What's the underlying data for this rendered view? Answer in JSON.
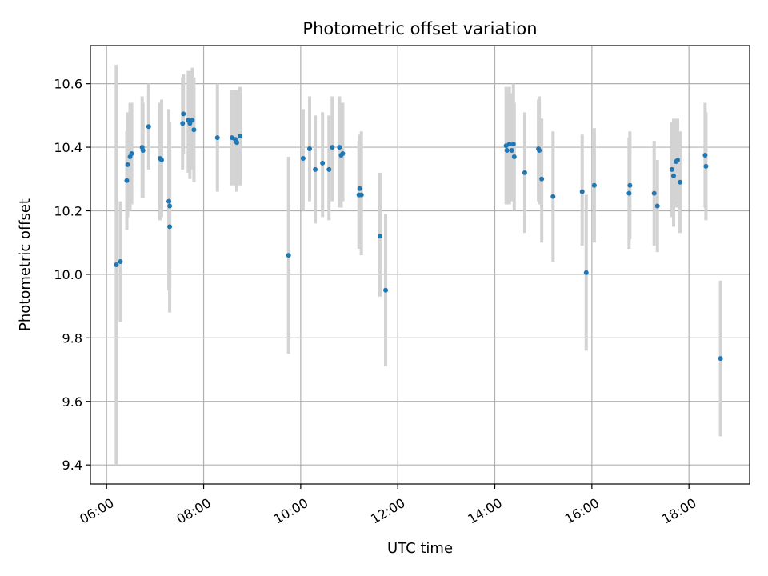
{
  "chart_data": {
    "type": "scatter",
    "title": "Photometric offset variation",
    "xlabel": "UTC time",
    "ylabel": "Photometric offset",
    "xlim": [
      "05:40",
      "19:15"
    ],
    "ylim": [
      9.34,
      10.72
    ],
    "xticks": [
      "06:00",
      "08:00",
      "10:00",
      "12:00",
      "14:00",
      "16:00",
      "18:00"
    ],
    "yticks": [
      "9.4",
      "9.6",
      "9.8",
      "10.0",
      "10.2",
      "10.4",
      "10.6"
    ],
    "grid": true,
    "colors": {
      "points": "#1f77b4",
      "errorbars": "#d3d3d3",
      "grid": "#b0b0b0"
    },
    "points": [
      {
        "x": "06:12",
        "y": 10.03,
        "lo": 9.4,
        "hi": 10.66
      },
      {
        "x": "06:17",
        "y": 10.04,
        "lo": 9.85,
        "hi": 10.23
      },
      {
        "x": "06:25",
        "y": 10.295,
        "lo": 10.14,
        "hi": 10.45
      },
      {
        "x": "06:26",
        "y": 10.345,
        "lo": 10.18,
        "hi": 10.51
      },
      {
        "x": "06:29",
        "y": 10.37,
        "lo": 10.2,
        "hi": 10.54
      },
      {
        "x": "06:31",
        "y": 10.38,
        "lo": 10.22,
        "hi": 10.54
      },
      {
        "x": "06:44",
        "y": 10.4,
        "lo": 10.24,
        "hi": 10.56
      },
      {
        "x": "06:45",
        "y": 10.39,
        "lo": 10.24,
        "hi": 10.54
      },
      {
        "x": "06:52",
        "y": 10.465,
        "lo": 10.33,
        "hi": 10.6
      },
      {
        "x": "07:06",
        "y": 10.365,
        "lo": 10.17,
        "hi": 10.54
      },
      {
        "x": "07:08",
        "y": 10.36,
        "lo": 10.18,
        "hi": 10.55
      },
      {
        "x": "07:17",
        "y": 10.23,
        "lo": 9.95,
        "hi": 10.52
      },
      {
        "x": "07:18",
        "y": 10.215,
        "lo": 9.96,
        "hi": 10.48
      },
      {
        "x": "07:18",
        "y": 10.15,
        "lo": 9.88,
        "hi": 10.41
      },
      {
        "x": "07:34",
        "y": 10.475,
        "lo": 10.33,
        "hi": 10.62
      },
      {
        "x": "07:35",
        "y": 10.505,
        "lo": 10.38,
        "hi": 10.63
      },
      {
        "x": "07:41",
        "y": 10.485,
        "lo": 10.32,
        "hi": 10.64
      },
      {
        "x": "07:43",
        "y": 10.475,
        "lo": 10.3,
        "hi": 10.64
      },
      {
        "x": "07:46",
        "y": 10.485,
        "lo": 10.33,
        "hi": 10.65
      },
      {
        "x": "07:48",
        "y": 10.455,
        "lo": 10.29,
        "hi": 10.62
      },
      {
        "x": "08:17",
        "y": 10.43,
        "lo": 10.26,
        "hi": 10.6
      },
      {
        "x": "08:35",
        "y": 10.43,
        "lo": 10.28,
        "hi": 10.58
      },
      {
        "x": "08:39",
        "y": 10.425,
        "lo": 10.28,
        "hi": 10.58
      },
      {
        "x": "08:41",
        "y": 10.415,
        "lo": 10.26,
        "hi": 10.58
      },
      {
        "x": "08:45",
        "y": 10.435,
        "lo": 10.28,
        "hi": 10.59
      },
      {
        "x": "09:45",
        "y": 10.06,
        "lo": 9.75,
        "hi": 10.37
      },
      {
        "x": "10:03",
        "y": 10.365,
        "lo": 10.2,
        "hi": 10.52
      },
      {
        "x": "10:11",
        "y": 10.395,
        "lo": 10.23,
        "hi": 10.56
      },
      {
        "x": "10:18",
        "y": 10.33,
        "lo": 10.16,
        "hi": 10.5
      },
      {
        "x": "10:27",
        "y": 10.35,
        "lo": 10.18,
        "hi": 10.51
      },
      {
        "x": "10:35",
        "y": 10.33,
        "lo": 10.17,
        "hi": 10.5
      },
      {
        "x": "10:39",
        "y": 10.4,
        "lo": 10.23,
        "hi": 10.56
      },
      {
        "x": "10:48",
        "y": 10.4,
        "lo": 10.21,
        "hi": 10.56
      },
      {
        "x": "10:50",
        "y": 10.375,
        "lo": 10.21,
        "hi": 10.54
      },
      {
        "x": "10:52",
        "y": 10.38,
        "lo": 10.23,
        "hi": 10.54
      },
      {
        "x": "11:12",
        "y": 10.25,
        "lo": 10.08,
        "hi": 10.42
      },
      {
        "x": "11:13",
        "y": 10.27,
        "lo": 10.1,
        "hi": 10.44
      },
      {
        "x": "11:15",
        "y": 10.25,
        "lo": 10.06,
        "hi": 10.45
      },
      {
        "x": "11:38",
        "y": 10.12,
        "lo": 9.93,
        "hi": 10.32
      },
      {
        "x": "11:45",
        "y": 9.95,
        "lo": 9.71,
        "hi": 10.19
      },
      {
        "x": "14:14",
        "y": 10.405,
        "lo": 10.22,
        "hi": 10.59
      },
      {
        "x": "14:15",
        "y": 10.39,
        "lo": 10.22,
        "hi": 10.57
      },
      {
        "x": "14:18",
        "y": 10.41,
        "lo": 10.22,
        "hi": 10.59
      },
      {
        "x": "14:21",
        "y": 10.39,
        "lo": 10.23,
        "hi": 10.57
      },
      {
        "x": "14:23",
        "y": 10.41,
        "lo": 10.24,
        "hi": 10.6
      },
      {
        "x": "14:24",
        "y": 10.37,
        "lo": 10.2,
        "hi": 10.54
      },
      {
        "x": "14:37",
        "y": 10.32,
        "lo": 10.13,
        "hi": 10.51
      },
      {
        "x": "14:54",
        "y": 10.395,
        "lo": 10.23,
        "hi": 10.55
      },
      {
        "x": "14:55",
        "y": 10.39,
        "lo": 10.22,
        "hi": 10.56
      },
      {
        "x": "14:58",
        "y": 10.3,
        "lo": 10.1,
        "hi": 10.49
      },
      {
        "x": "15:12",
        "y": 10.245,
        "lo": 10.04,
        "hi": 10.45
      },
      {
        "x": "15:48",
        "y": 10.26,
        "lo": 10.09,
        "hi": 10.44
      },
      {
        "x": "15:53",
        "y": 10.005,
        "lo": 9.76,
        "hi": 10.25
      },
      {
        "x": "16:03",
        "y": 10.28,
        "lo": 10.1,
        "hi": 10.46
      },
      {
        "x": "16:46",
        "y": 10.255,
        "lo": 10.08,
        "hi": 10.43
      },
      {
        "x": "16:47",
        "y": 10.28,
        "lo": 10.11,
        "hi": 10.45
      },
      {
        "x": "17:17",
        "y": 10.255,
        "lo": 10.09,
        "hi": 10.42
      },
      {
        "x": "17:21",
        "y": 10.215,
        "lo": 10.07,
        "hi": 10.36
      },
      {
        "x": "17:39",
        "y": 10.33,
        "lo": 10.18,
        "hi": 10.48
      },
      {
        "x": "17:41",
        "y": 10.31,
        "lo": 10.15,
        "hi": 10.49
      },
      {
        "x": "17:44",
        "y": 10.355,
        "lo": 10.21,
        "hi": 10.49
      },
      {
        "x": "17:46",
        "y": 10.36,
        "lo": 10.22,
        "hi": 10.49
      },
      {
        "x": "17:49",
        "y": 10.29,
        "lo": 10.13,
        "hi": 10.45
      },
      {
        "x": "18:20",
        "y": 10.375,
        "lo": 10.21,
        "hi": 10.54
      },
      {
        "x": "18:21",
        "y": 10.34,
        "lo": 10.17,
        "hi": 10.51
      },
      {
        "x": "18:39",
        "y": 9.735,
        "lo": 9.49,
        "hi": 9.98
      }
    ]
  }
}
